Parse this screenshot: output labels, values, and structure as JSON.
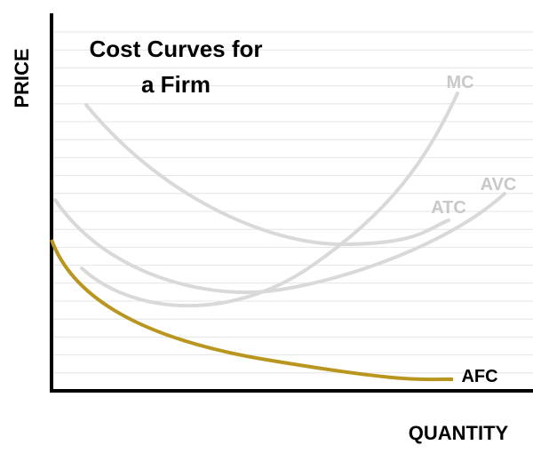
{
  "title": [
    "Cost Curves for",
    "a Firm"
  ],
  "axes": {
    "y": "PRICE",
    "x": "QUANTITY"
  },
  "curves": [
    {
      "label": "MC"
    },
    {
      "label": "AVC"
    },
    {
      "label": "ATC"
    },
    {
      "label": "AFC"
    }
  ]
}
